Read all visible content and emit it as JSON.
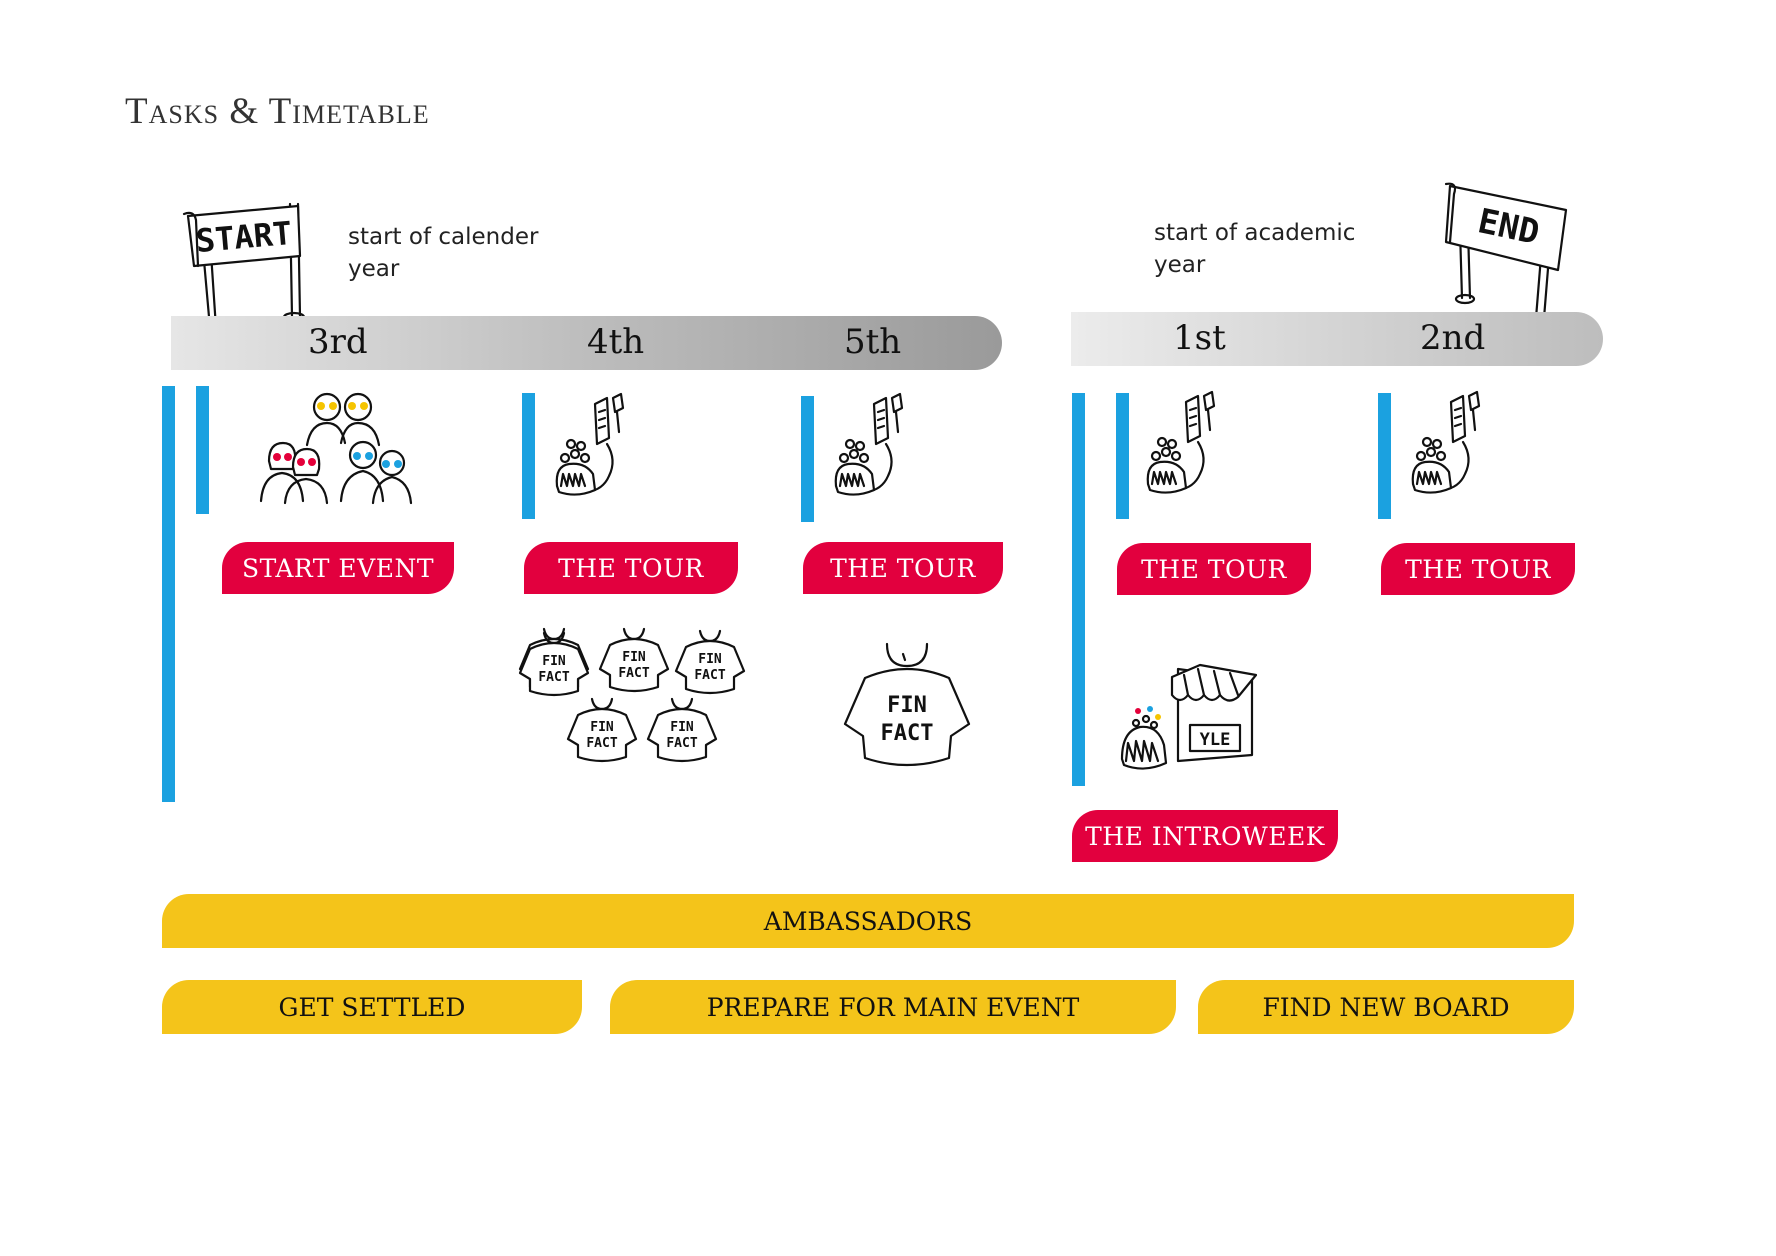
{
  "title": "Tasks & Timetable",
  "start_sign": "START",
  "end_sign": "END",
  "notes": {
    "calendar": "start of calender year",
    "academic": "start of academic year"
  },
  "periods": [
    "3rd",
    "4th",
    "5th",
    "1st",
    "2nd"
  ],
  "events": {
    "start_event": "START EVENT",
    "tour_4": "THE TOUR",
    "tour_5": "THE TOUR",
    "tour_1": "THE TOUR",
    "tour_2": "THE TOUR",
    "introweek": "THE INTROWEEK"
  },
  "tasks": {
    "ambassadors": "AMBASSADORS",
    "get_settled": "GET SETTLED",
    "prepare": "PREPARE FOR MAIN EVENT",
    "find_board": "FIND NEW BOARD"
  },
  "shirt_text": [
    "FIN",
    "FACT"
  ],
  "stall_text": "YLE",
  "colors": {
    "event_red": "#e2003e",
    "task_yellow": "#f4c41a",
    "timeline_blue": "#1ba1e0",
    "bar_grey": "#bdbdbd"
  }
}
